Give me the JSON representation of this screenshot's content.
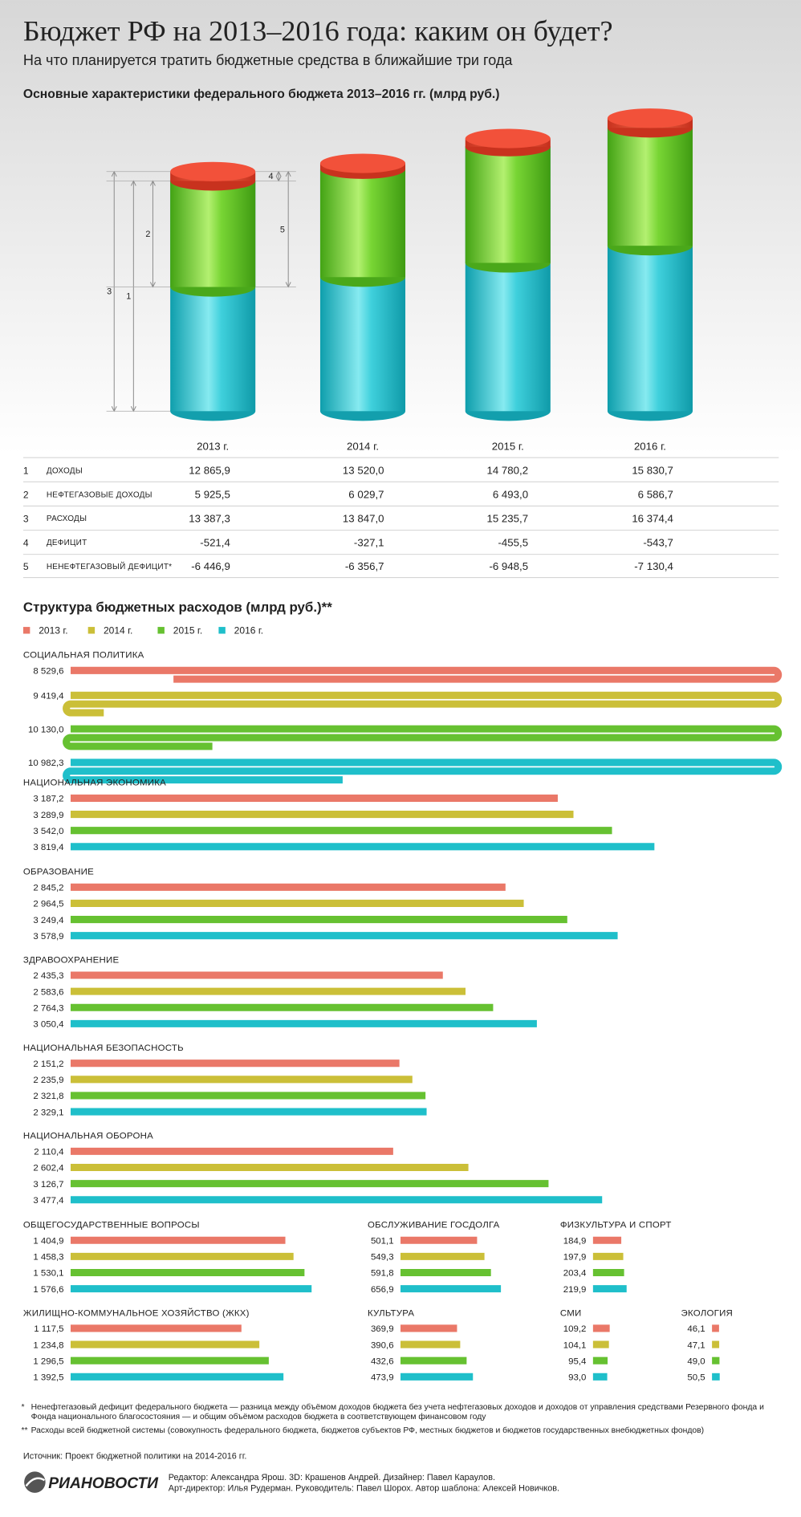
{
  "header": {
    "title": "Бюджет РФ на 2013–2016 года: каким он будет?",
    "subtitle": "На что планируется тратить бюджетные средства в ближайшие три года"
  },
  "chart_data": [
    {
      "type": "cylinder",
      "title": "Основные характеристики федерального бюджета 2013–2016 гг. (млрд руб.)",
      "categories": [
        "2013 г.",
        "2014 г.",
        "2015 г.",
        "2016 г."
      ],
      "series": [
        {
          "number": "1",
          "name": "ДОХОДЫ",
          "color": "#1fbfcf",
          "values": [
            12865.9,
            13520.0,
            14780.2,
            15830.7
          ],
          "value_labels": [
            "12 865,9",
            "13 520,0",
            "14 780,2",
            "15 830,7"
          ]
        },
        {
          "number": "2",
          "name": "НЕФТЕГАЗОВЫЕ ДОХОДЫ",
          "color": "#6acb2a",
          "values": [
            5925.5,
            6029.7,
            6493.0,
            6586.7
          ],
          "value_labels": [
            "5 925,5",
            "6 029,7",
            "6 493,0",
            "6 586,7"
          ]
        },
        {
          "number": "3",
          "name": "РАСХОДЫ",
          "values": [
            13387.3,
            13847.0,
            15235.7,
            16374.4
          ],
          "value_labels": [
            "13 387,3",
            "13 847,0",
            "15 235,7",
            "16 374,4"
          ]
        },
        {
          "number": "4",
          "name": "ДЕФИЦИТ",
          "color": "#f2513a",
          "values": [
            -521.4,
            -327.1,
            -455.5,
            -543.7
          ],
          "value_labels": [
            "-521,4",
            "-327,1",
            "-455,5",
            "-543,7"
          ]
        },
        {
          "number": "5",
          "name": "НЕНЕФТЕГАЗОВЫЙ ДЕФИЦИТ*",
          "values": [
            -6446.9,
            -6356.7,
            -6948.5,
            -7130.4
          ],
          "value_labels": [
            "-6 446,9",
            "-6 356,7",
            "-6 948,5",
            "-7 130,4"
          ]
        }
      ]
    },
    {
      "type": "bar",
      "title": "Структура бюджетных расходов (млрд руб.)**",
      "categories": [
        "СОЦИАЛЬНАЯ ПОЛИТИКА",
        "НАЦИОНАЛЬНАЯ ЭКОНОМИКА",
        "ОБРАЗОВАНИЕ",
        "ЗДРАВООХРАНЕНИЕ",
        "НАЦИОНАЛЬНАЯ БЕЗОПАСНОСТЬ",
        "НАЦИОНАЛЬНАЯ ОБОРОНА",
        "ОБЩЕГОСУДАРСТВЕННЫЕ ВОПРОСЫ",
        "ОБСЛУЖИВАНИЕ ГОСДОЛГА",
        "ФИЗКУЛЬТУРА И СПОРТ",
        "ЖИЛИЩНО-КОММУНАЛЬНОЕ ХОЗЯЙСТВО (ЖКХ)",
        "КУЛЬТУРА",
        "СМИ",
        "ЭКОЛОГИЯ"
      ],
      "series": [
        {
          "name": "2013 г.",
          "color": "#ea7868",
          "values": [
            8529.6,
            3187.2,
            2845.2,
            2435.3,
            2151.2,
            2110.4,
            1404.9,
            501.1,
            184.9,
            1117.5,
            369.9,
            109.2,
            46.1
          ],
          "value_labels": [
            "8 529,6",
            "3 187,2",
            "2 845,2",
            "2 435,3",
            "2 151,2",
            "2 110,4",
            "1 404,9",
            "501,1",
            "184,9",
            "1 117,5",
            "369,9",
            "109,2",
            "46,1"
          ]
        },
        {
          "name": "2014 г.",
          "color": "#cbbf38",
          "values": [
            9419.4,
            3289.9,
            2964.5,
            2583.6,
            2235.9,
            2602.4,
            1458.3,
            549.3,
            197.9,
            1234.8,
            390.6,
            104.1,
            47.1
          ],
          "value_labels": [
            "9 419,4",
            "3 289,9",
            "2 964,5",
            "2 583,6",
            "2 235,9",
            "2 602,4",
            "1 458,3",
            "549,3",
            "197,9",
            "1 234,8",
            "390,6",
            "104,1",
            "47,1"
          ]
        },
        {
          "name": "2015 г.",
          "color": "#66c131",
          "values": [
            10130.0,
            3542.0,
            3249.4,
            2764.3,
            2321.8,
            3126.7,
            1530.1,
            591.8,
            203.4,
            1296.5,
            432.6,
            95.4,
            49.0
          ],
          "value_labels": [
            "10 130,0",
            "3 542,0",
            "3 249,4",
            "2 764,3",
            "2 321,8",
            "3 126,7",
            "1 530,1",
            "591,8",
            "203,4",
            "1 296,5",
            "432,6",
            "95,4",
            "49,0"
          ]
        },
        {
          "name": "2016 г.",
          "color": "#1fbfca",
          "values": [
            10982.3,
            3819.4,
            3578.9,
            3050.4,
            2329.1,
            3477.4,
            1576.6,
            656.9,
            219.9,
            1392.5,
            473.9,
            93.0,
            50.5
          ],
          "value_labels": [
            "10 982,3",
            "3 819,4",
            "3 578,9",
            "3 050,4",
            "2 329,1",
            "3 477,4",
            "1 576,6",
            "656,9",
            "219,9",
            "1 392,5",
            "473,9",
            "93,0",
            "50,5"
          ]
        }
      ]
    }
  ],
  "footnotes": [
    {
      "mark": "*",
      "text": "Ненефтегазовый дефицит федерального бюджета — разница между объёмом доходов бюджета без учета нефтегазовых доходов и доходов от управления средствами Резервного фонда и Фонда национального благосостояния — и общим объёмом расходов бюджета в соответствующем финансовом году"
    },
    {
      "mark": "**",
      "text": "Расходы всей бюджетной системы (совокупность федерального бюджета, бюджетов субъектов РФ, местных бюджетов и бюджетов государственных внебюджетных фондов)"
    }
  ],
  "source": "Источник: Проект бюджетной политики на 2014-2016 гг.",
  "footer": {
    "logo": "РИАНОВОСТИ",
    "credits": [
      "Редактор: Александра Ярош. 3D: Крашенов Андрей. Дизайнер: Павел Караулов.",
      "Арт-директор: Илья Рудерман. Руководитель: Павел Шорох. Автор шаблона: Алексей Новичков."
    ]
  }
}
